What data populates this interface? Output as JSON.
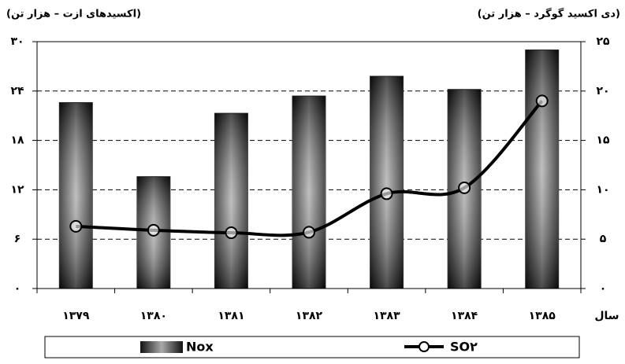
{
  "chart_data": {
    "type": "bar",
    "y_label": "(اکسیدهای ازت – هزار تن)",
    "y2_label": "(دی اکسید گوگرد – هزار تن)",
    "x_label": "سال",
    "categories": [
      "۱۳۷۹",
      "۱۳۸۰",
      "۱۳۸۱",
      "۱۳۸۲",
      "۱۳۸۳",
      "۱۳۸۴",
      "۱۳۸۵"
    ],
    "series": [
      {
        "name": "Nox",
        "color": "#333333",
        "values": [
          22.6,
          13.6,
          21.3,
          23.4,
          25.8,
          24.2,
          29.0
        ]
      },
      {
        "name": "SO۲",
        "type": "line",
        "axis": "y2",
        "color": "#000000",
        "values": [
          6.3,
          5.9,
          5.65,
          5.7,
          9.6,
          10.2,
          19.0
        ]
      }
    ],
    "ylim": [
      0,
      30
    ],
    "yticks": [
      {
        "value": 0,
        "label": "۰"
      },
      {
        "value": 6,
        "label": "۶"
      },
      {
        "value": 12,
        "label": "۱۲"
      },
      {
        "value": 18,
        "label": "۱۸"
      },
      {
        "value": 24,
        "label": "۲۴"
      },
      {
        "value": 30,
        "label": "۳۰"
      }
    ],
    "y2lim": [
      0,
      25
    ],
    "y2ticks": [
      {
        "value": 0,
        "label": "۰"
      },
      {
        "value": 5,
        "label": "۵"
      },
      {
        "value": 10,
        "label": "۱۰"
      },
      {
        "value": 15,
        "label": "۱۵"
      },
      {
        "value": 20,
        "label": "۲۰"
      },
      {
        "value": 25,
        "label": "۲۵"
      }
    ],
    "grid": true
  }
}
